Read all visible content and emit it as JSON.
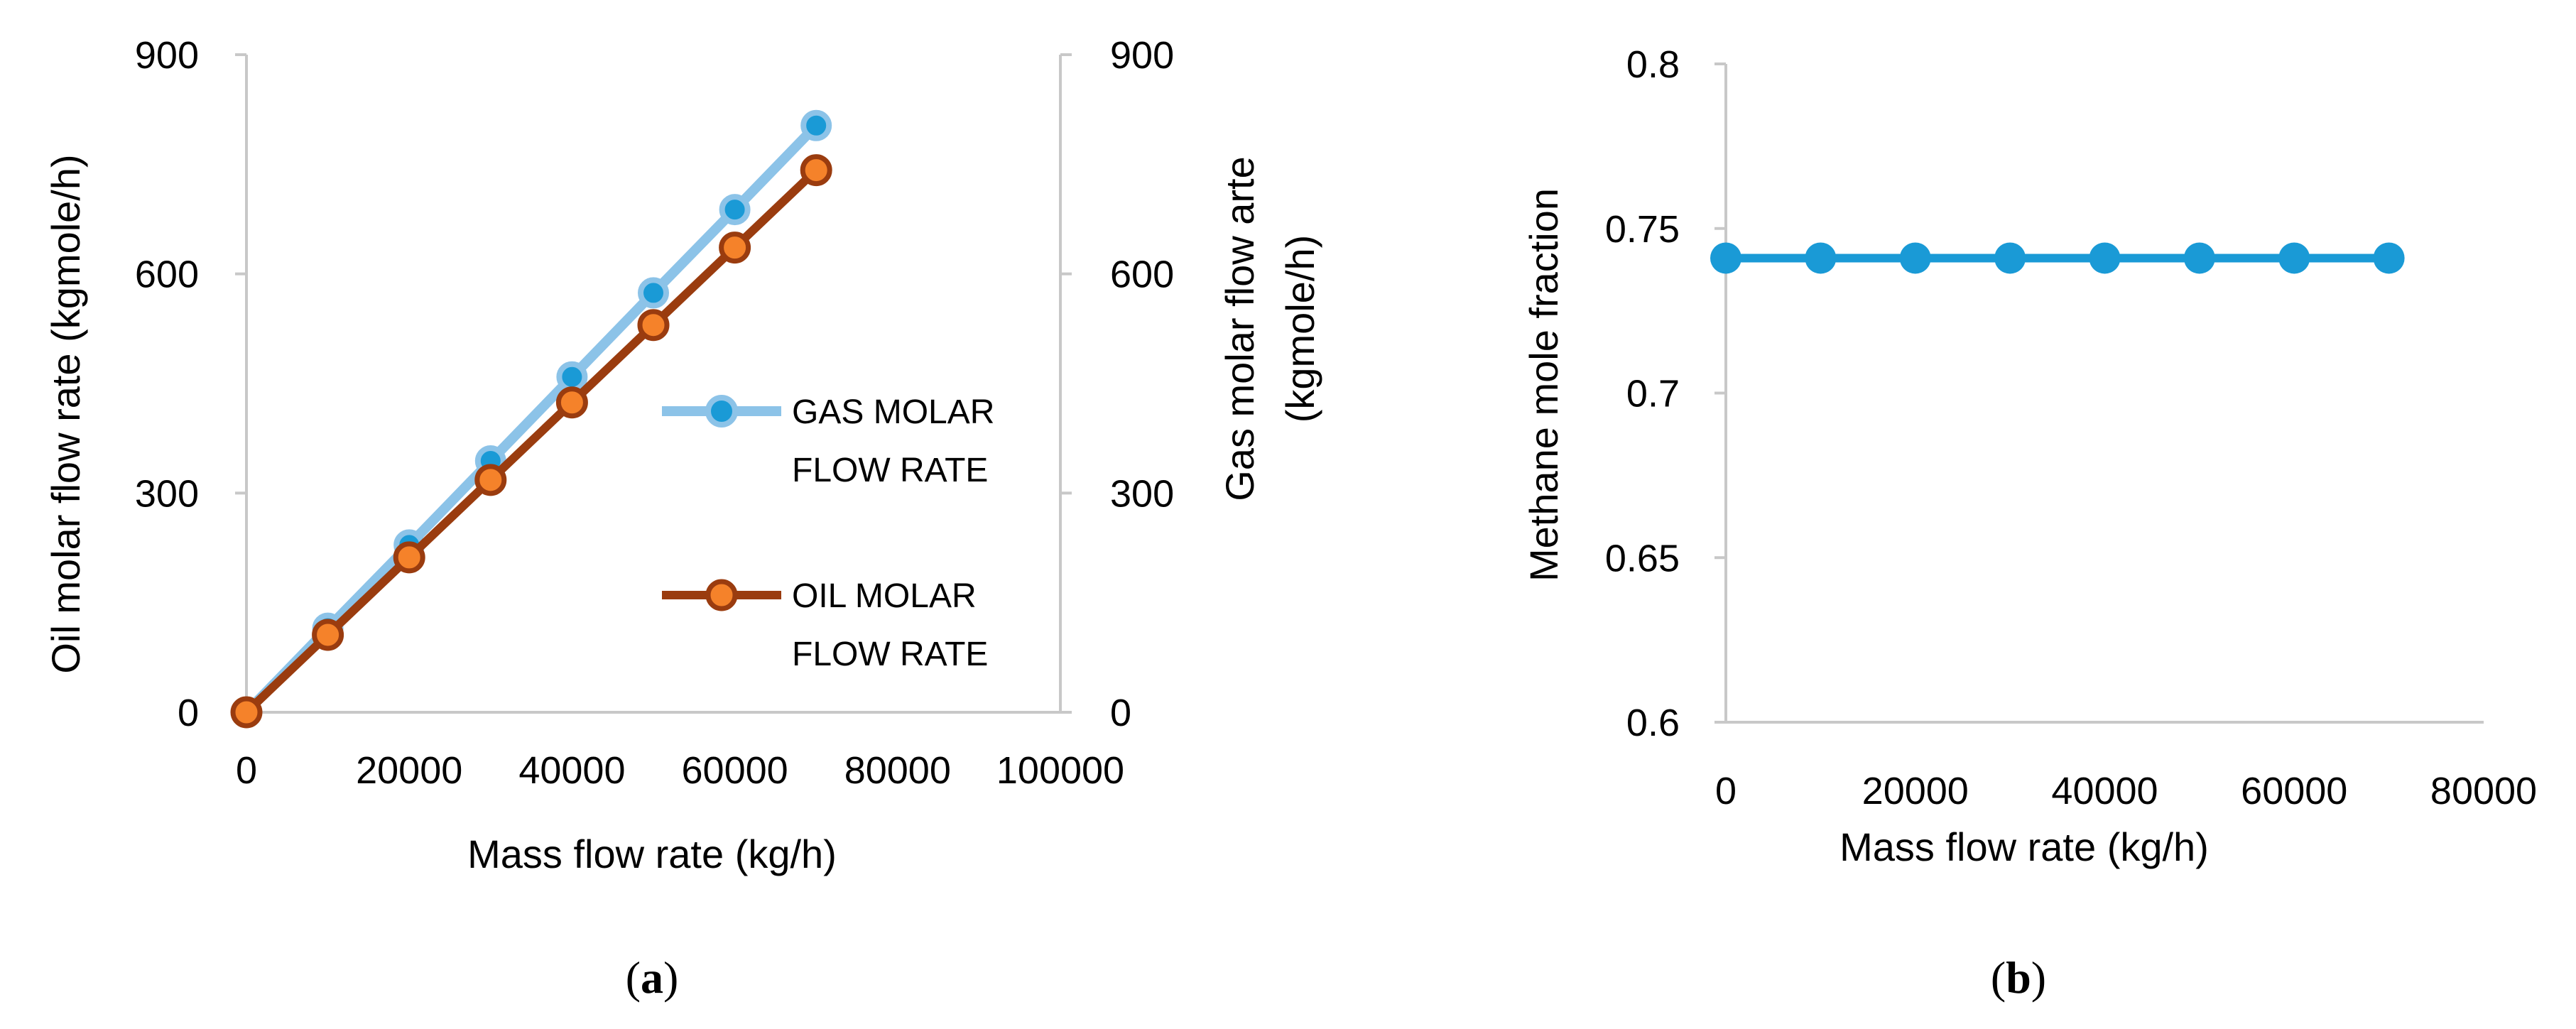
{
  "chart_data": [
    {
      "type": "line",
      "caption_letter": "a",
      "xlabel": "Mass flow rate (kg/h)",
      "ylabel": "Oil molar flow rate (kgmole/h)",
      "y2label_line1": "Gas molar flow arte",
      "y2label_line2": "(kgmole/h)",
      "xlim": [
        0,
        100000
      ],
      "ylim": [
        0,
        900
      ],
      "y2lim": [
        0,
        900
      ],
      "xticks": [
        0,
        20000,
        40000,
        60000,
        80000,
        100000
      ],
      "xtick_labels": [
        "0",
        "20000",
        "40000",
        "60000",
        "80000",
        "100000"
      ],
      "yticks": [
        0,
        300,
        600,
        900
      ],
      "ytick_labels": [
        "0",
        "300",
        "600",
        "900"
      ],
      "y2ticks": [
        0,
        300,
        600,
        900
      ],
      "y2tick_labels": [
        "0",
        "300",
        "600",
        "900"
      ],
      "grid": false,
      "legend_position": "right",
      "x": [
        0,
        10000,
        20000,
        30000,
        40000,
        50000,
        60000,
        70000
      ],
      "series": [
        {
          "name": "GAS MOLAR FLOW RATE",
          "legend_line1": "GAS MOLAR",
          "legend_line2": "FLOW RATE",
          "axis": "right",
          "color": "#1a9ad6",
          "line_color": "#8cc3e8",
          "values": [
            0,
            115,
            229,
            344,
            459,
            574,
            688,
            803
          ]
        },
        {
          "name": "OIL MOLAR FLOW RATE",
          "legend_line1": "OIL MOLAR",
          "legend_line2": "FLOW RATE",
          "axis": "left",
          "color": "#f5822a",
          "line_color": "#9a3c0f",
          "values": [
            0,
            106,
            212,
            318,
            424,
            530,
            636,
            742
          ]
        }
      ]
    },
    {
      "type": "line",
      "caption_letter": "b",
      "xlabel": "Mass flow rate (kg/h)",
      "ylabel": "Methane mole fraction",
      "xlim": [
        0,
        80000
      ],
      "ylim": [
        0.6,
        0.8
      ],
      "xticks": [
        0,
        20000,
        40000,
        60000,
        80000
      ],
      "xtick_labels": [
        "0",
        "20000",
        "40000",
        "60000",
        "80000"
      ],
      "yticks": [
        0.6,
        0.65,
        0.7,
        0.75,
        0.8
      ],
      "ytick_labels": [
        "0.6",
        "0.65",
        "0.7",
        "0.75",
        "0.8"
      ],
      "grid": false,
      "x": [
        0,
        10000,
        20000,
        30000,
        40000,
        50000,
        60000,
        70000
      ],
      "series": [
        {
          "name": "Methane mole fraction",
          "color": "#1a9ad6",
          "line_color": "#1a9ad6",
          "values": [
            0.741,
            0.741,
            0.741,
            0.741,
            0.741,
            0.741,
            0.741,
            0.741
          ]
        }
      ]
    }
  ]
}
